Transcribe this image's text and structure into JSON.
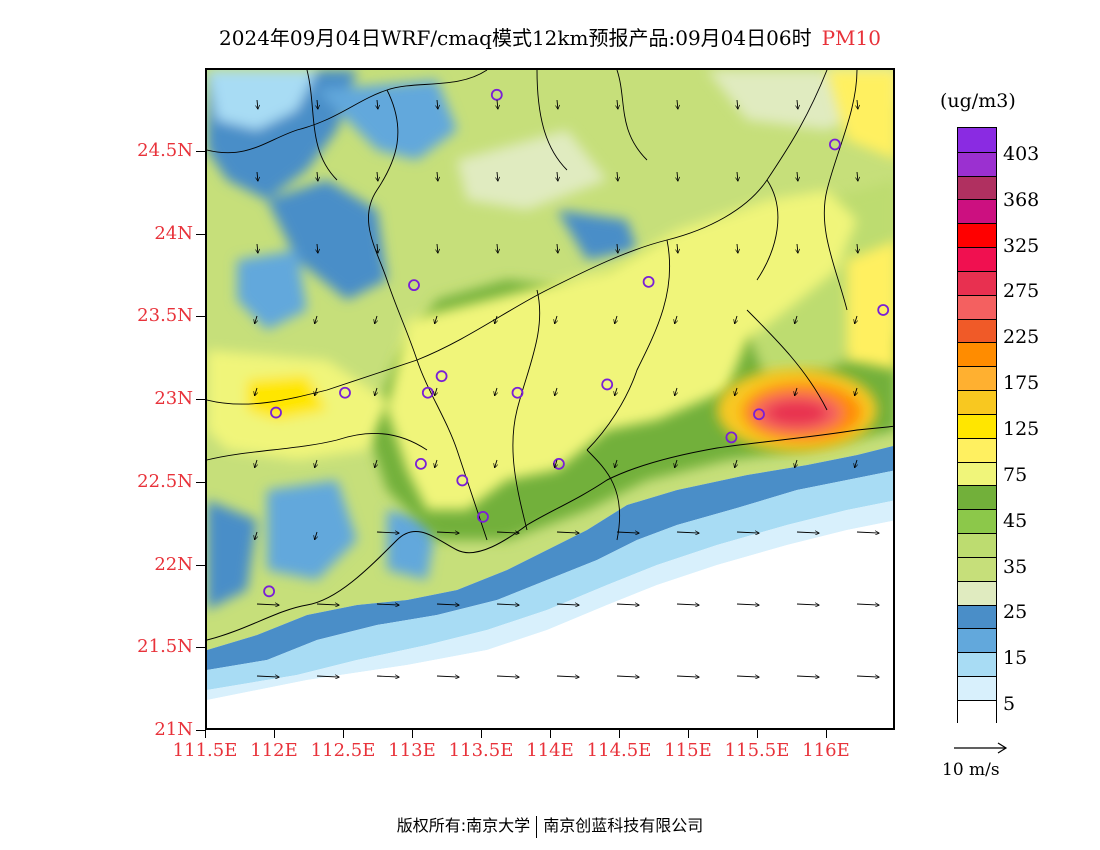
{
  "header": {
    "title": "2024年09月04日WRF/cmaq模式12km预报产品:09月04日06时",
    "species": "PM10"
  },
  "map": {
    "lat_labels": [
      "24.5N",
      "24N",
      "23.5N",
      "23N",
      "22.5N",
      "22N",
      "21.5N",
      "21N"
    ],
    "lon_labels": [
      "111.5E",
      "112E",
      "112.5E",
      "113E",
      "113.5E",
      "114E",
      "114.5E",
      "115E",
      "115.5E",
      "116E"
    ],
    "lon_range": [
      111.5,
      116.5
    ],
    "lat_range": [
      21.0,
      25.0
    ],
    "stations": [
      {
        "lon": 113.6,
        "lat": 24.85
      },
      {
        "lon": 116.05,
        "lat": 24.55
      },
      {
        "lon": 113.0,
        "lat": 23.7
      },
      {
        "lon": 114.7,
        "lat": 23.72
      },
      {
        "lon": 116.4,
        "lat": 23.55
      },
      {
        "lon": 113.2,
        "lat": 23.15
      },
      {
        "lon": 112.5,
        "lat": 23.05
      },
      {
        "lon": 113.1,
        "lat": 23.05
      },
      {
        "lon": 113.75,
        "lat": 23.05
      },
      {
        "lon": 114.4,
        "lat": 23.1
      },
      {
        "lon": 112.0,
        "lat": 22.93
      },
      {
        "lon": 115.5,
        "lat": 22.92
      },
      {
        "lon": 115.3,
        "lat": 22.78
      },
      {
        "lon": 113.05,
        "lat": 22.62
      },
      {
        "lon": 114.05,
        "lat": 22.62
      },
      {
        "lon": 113.35,
        "lat": 22.52
      },
      {
        "lon": 113.5,
        "lat": 22.3
      },
      {
        "lon": 111.95,
        "lat": 21.85
      }
    ],
    "colors": {
      "land_base": "#c6df7a",
      "sea": "#ffffff"
    }
  },
  "legend": {
    "unit": "(ug/m3)",
    "labels": [
      "403",
      "368",
      "325",
      "275",
      "225",
      "175",
      "125",
      "75",
      "45",
      "35",
      "25",
      "15",
      "5"
    ],
    "colors": [
      "#8a2be2",
      "#9b30d0",
      "#b03060",
      "#cc1080",
      "#ff0000",
      "#f01050",
      "#e83050",
      "#f46060",
      "#f05a28",
      "#ff8c00",
      "#ffb030",
      "#f8c820",
      "#ffe600",
      "#fff060",
      "#f0f57a",
      "#72b03a",
      "#8cc84a",
      "#bddc70",
      "#c6df7a",
      "#e0ebc0",
      "#4a8ec8",
      "#62a8dc",
      "#a8dcf4",
      "#d8f0fc",
      "#ffffff"
    ]
  },
  "wind_reference": {
    "label": "10 m/s"
  },
  "footer": {
    "left": "版权所有:南京大学",
    "right": "南京创蓝科技有限公司"
  }
}
